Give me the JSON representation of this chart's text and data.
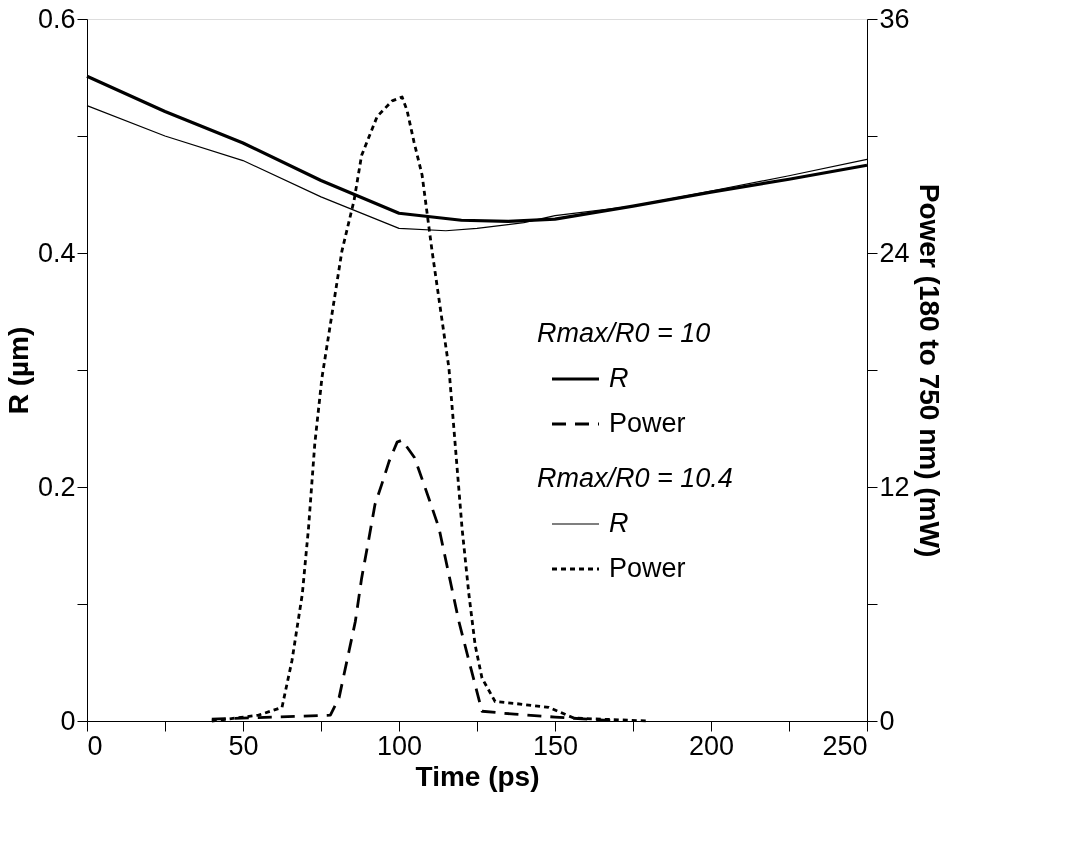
{
  "chart_data": {
    "type": "line",
    "xlabel": "Time (ps)",
    "ylabel": "R (µm)",
    "y2label": "Power (180 to 750 nm) (mW)",
    "xlim": [
      0,
      250
    ],
    "xticks": [
      0,
      {
        "value": 25,
        "label": null
      },
      50,
      {
        "value": 75,
        "label": null
      },
      100,
      {
        "value": 125,
        "label": null
      },
      150,
      {
        "value": 175,
        "label": null
      },
      200,
      {
        "value": 225,
        "label": null
      },
      250
    ],
    "ylim": [
      0,
      0.6
    ],
    "yticks": [
      0,
      {
        "value": 0.1,
        "label": null
      },
      0.2,
      {
        "value": 0.3,
        "label": null
      },
      0.4,
      {
        "value": 0.5,
        "label": null
      },
      0.6
    ],
    "y2lim": [
      0,
      36
    ],
    "y2ticks": [
      0,
      {
        "value": 6,
        "label": null
      },
      12,
      {
        "value": 18,
        "label": null
      },
      24,
      {
        "value": 30,
        "label": null
      },
      36
    ],
    "grid": false,
    "legend": "right",
    "marker": "none",
    "annotations": [
      "Rmax/R0 = 10",
      "Rmax/R0 = 10.4"
    ],
    "series": [
      {
        "name": "R",
        "color": "#000000",
        "line_style": "solid",
        "x": [
          0,
          25,
          50,
          75,
          100,
          120,
          135,
          150,
          175,
          200,
          225,
          250
        ],
        "values": [
          0.551,
          0.521,
          0.494,
          0.462,
          0.434,
          0.428,
          0.427,
          0.429,
          0.44,
          0.452,
          0.463,
          0.475
        ]
      },
      {
        "name": "Power",
        "color": "#000000",
        "line_style": "dashed",
        "axis": "y2",
        "x": [
          40,
          60,
          78,
          80.8,
          84,
          86,
          88,
          90.4,
          92.3,
          94.6,
          96.8,
          99.4,
          101,
          105,
          109.6,
          112.8,
          116,
          119.2,
          122.4,
          126.6,
          137,
          150,
          170
        ],
        "values": [
          0.1,
          0.2,
          0.3,
          1.2,
          3.6,
          5.1,
          7.3,
          9.4,
          11.1,
          12.2,
          13.3,
          14.3,
          14.4,
          13.5,
          11.4,
          9.9,
          7.5,
          5.1,
          3.1,
          0.5,
          0.35,
          0.2,
          0
        ]
      },
      {
        "name": "R",
        "color": "#000000",
        "line_style": "solid",
        "x": [
          0,
          25,
          50,
          75,
          100,
          115,
          125,
          140,
          150,
          175,
          200,
          225,
          250
        ],
        "values": [
          0.526,
          0.5,
          0.479,
          0.448,
          0.421,
          0.419,
          0.421,
          0.426,
          0.432,
          0.44,
          0.453,
          0.466,
          0.48
        ]
      },
      {
        "name": "Power",
        "color": "#000000",
        "line_style": "dotted",
        "axis": "y2",
        "x": [
          40,
          55,
          62.5,
          65.7,
          69,
          71,
          73,
          75.3,
          81.7,
          85.6,
          88,
          93,
          97.8,
          101,
          102.6,
          104.8,
          107.4,
          110.6,
          116,
          118,
          120.2,
          122.4,
          124.4,
          126.6,
          130.8,
          137,
          148,
          156,
          180
        ],
        "values": [
          0,
          0.3,
          0.7,
          3.1,
          6.5,
          9.9,
          14.2,
          17.6,
          24.1,
          26.7,
          29.0,
          31.0,
          31.8,
          32.0,
          31.3,
          29.7,
          28.0,
          24.1,
          18.1,
          14.2,
          9.9,
          6.5,
          3.9,
          2.2,
          1.0,
          0.9,
          0.7,
          0.15,
          0
        ]
      }
    ]
  }
}
